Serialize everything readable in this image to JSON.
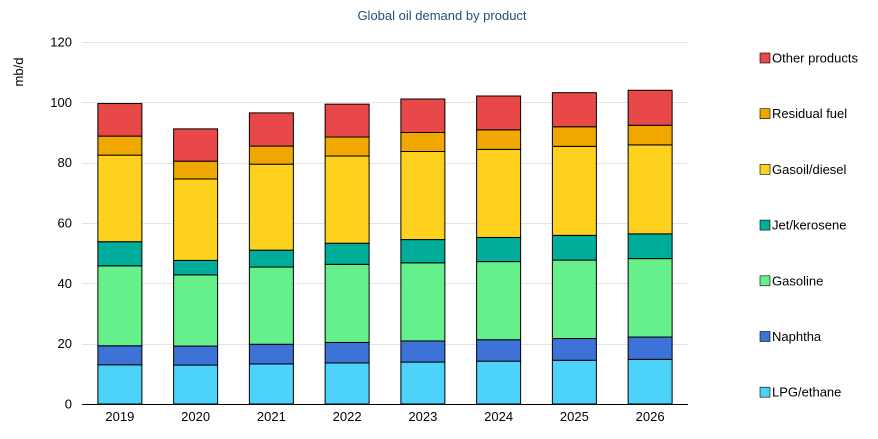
{
  "chart_data": {
    "type": "bar",
    "stacked": true,
    "title": "Global oil demand by product",
    "ylabel": "mb/d",
    "xlabel": "",
    "ylim": [
      0,
      120
    ],
    "yticks": [
      0,
      20,
      40,
      60,
      80,
      100,
      120
    ],
    "grid": true,
    "legend_position": "right",
    "categories": [
      "2019",
      "2020",
      "2021",
      "2022",
      "2023",
      "2024",
      "2025",
      "2026"
    ],
    "series": [
      {
        "name": "LPG/ethane",
        "color": "#4dd2fa",
        "values": [
          13.0,
          12.9,
          13.3,
          13.6,
          13.9,
          14.2,
          14.5,
          14.8
        ]
      },
      {
        "name": "Naphtha",
        "color": "#3d72d6",
        "values": [
          6.3,
          6.3,
          6.5,
          6.8,
          7.0,
          7.1,
          7.2,
          7.4
        ]
      },
      {
        "name": "Gasoline",
        "color": "#66f08c",
        "values": [
          26.5,
          23.6,
          25.6,
          25.9,
          25.9,
          25.9,
          26.0,
          26.0
        ]
      },
      {
        "name": "Jet/kerosene",
        "color": "#00ad9a",
        "values": [
          8.0,
          4.8,
          5.6,
          7.0,
          7.7,
          8.0,
          8.2,
          8.2
        ]
      },
      {
        "name": "Gasoil/diesel",
        "color": "#ffd11f",
        "values": [
          28.7,
          27.0,
          28.5,
          28.9,
          29.2,
          29.2,
          29.5,
          29.5
        ]
      },
      {
        "name": "Residual fuel",
        "color": "#f0a800",
        "values": [
          6.3,
          5.9,
          6.0,
          6.3,
          6.3,
          6.5,
          6.5,
          6.5
        ]
      },
      {
        "name": "Other products",
        "color": "#e84848",
        "values": [
          10.8,
          10.7,
          11.0,
          10.9,
          11.1,
          11.2,
          11.3,
          11.6
        ]
      }
    ]
  }
}
